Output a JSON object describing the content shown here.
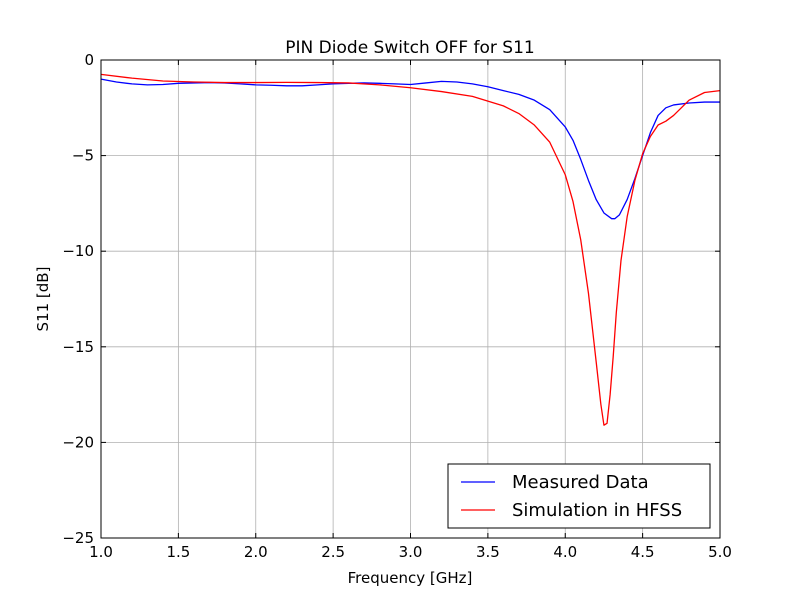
{
  "chart_data": {
    "type": "line",
    "title": "PIN Diode Switch OFF for S11",
    "xlabel": "Frequency [GHz]",
    "ylabel": "S11 [dB]",
    "xlim": [
      1.0,
      5.0
    ],
    "ylim": [
      -25,
      0
    ],
    "xticks": [
      1.0,
      1.5,
      2.0,
      2.5,
      3.0,
      3.5,
      4.0,
      4.5,
      5.0
    ],
    "xtick_labels": [
      "1.0",
      "1.5",
      "2.0",
      "2.5",
      "3.0",
      "3.5",
      "4.0",
      "4.5",
      "5.0"
    ],
    "yticks": [
      0,
      -5,
      -10,
      -15,
      -20,
      -25
    ],
    "ytick_labels": [
      "0",
      "−5",
      "−10",
      "−15",
      "−20",
      "−25"
    ],
    "grid": true,
    "legend_position": "bottom-right",
    "series": [
      {
        "name": "Measured Data",
        "color": "#0000ff",
        "x": [
          1.0,
          1.1,
          1.2,
          1.3,
          1.4,
          1.5,
          1.6,
          1.7,
          1.8,
          1.9,
          2.0,
          2.1,
          2.2,
          2.3,
          2.4,
          2.5,
          2.6,
          2.7,
          2.8,
          2.9,
          3.0,
          3.1,
          3.2,
          3.3,
          3.4,
          3.5,
          3.6,
          3.7,
          3.8,
          3.9,
          4.0,
          4.05,
          4.1,
          4.15,
          4.2,
          4.25,
          4.3,
          4.32,
          4.35,
          4.4,
          4.45,
          4.5,
          4.55,
          4.6,
          4.65,
          4.7,
          4.8,
          4.9,
          5.0
        ],
        "y": [
          -1.0,
          -1.15,
          -1.25,
          -1.3,
          -1.28,
          -1.22,
          -1.2,
          -1.18,
          -1.2,
          -1.25,
          -1.3,
          -1.32,
          -1.35,
          -1.35,
          -1.3,
          -1.25,
          -1.22,
          -1.2,
          -1.22,
          -1.25,
          -1.28,
          -1.2,
          -1.12,
          -1.15,
          -1.25,
          -1.4,
          -1.6,
          -1.8,
          -2.1,
          -2.6,
          -3.5,
          -4.2,
          -5.2,
          -6.3,
          -7.3,
          -8.0,
          -8.3,
          -8.3,
          -8.1,
          -7.3,
          -6.2,
          -5.0,
          -3.8,
          -2.9,
          -2.5,
          -2.35,
          -2.25,
          -2.2,
          -2.2
        ]
      },
      {
        "name": "Simulation in HFSS",
        "color": "#ff0000",
        "x": [
          1.0,
          1.2,
          1.4,
          1.6,
          1.8,
          2.0,
          2.2,
          2.4,
          2.6,
          2.8,
          3.0,
          3.2,
          3.4,
          3.6,
          3.7,
          3.8,
          3.9,
          4.0,
          4.05,
          4.1,
          4.15,
          4.2,
          4.23,
          4.25,
          4.27,
          4.29,
          4.31,
          4.33,
          4.36,
          4.4,
          4.45,
          4.5,
          4.55,
          4.6,
          4.65,
          4.7,
          4.8,
          4.9,
          5.0
        ],
        "y": [
          -0.75,
          -0.95,
          -1.1,
          -1.15,
          -1.18,
          -1.18,
          -1.17,
          -1.18,
          -1.2,
          -1.3,
          -1.45,
          -1.65,
          -1.9,
          -2.4,
          -2.8,
          -3.4,
          -4.3,
          -6.0,
          -7.4,
          -9.4,
          -12.2,
          -15.8,
          -18.0,
          -19.1,
          -19.0,
          -17.5,
          -15.5,
          -13.2,
          -10.5,
          -8.2,
          -6.3,
          -4.9,
          -4.0,
          -3.4,
          -3.2,
          -2.9,
          -2.1,
          -1.7,
          -1.6
        ]
      }
    ]
  }
}
